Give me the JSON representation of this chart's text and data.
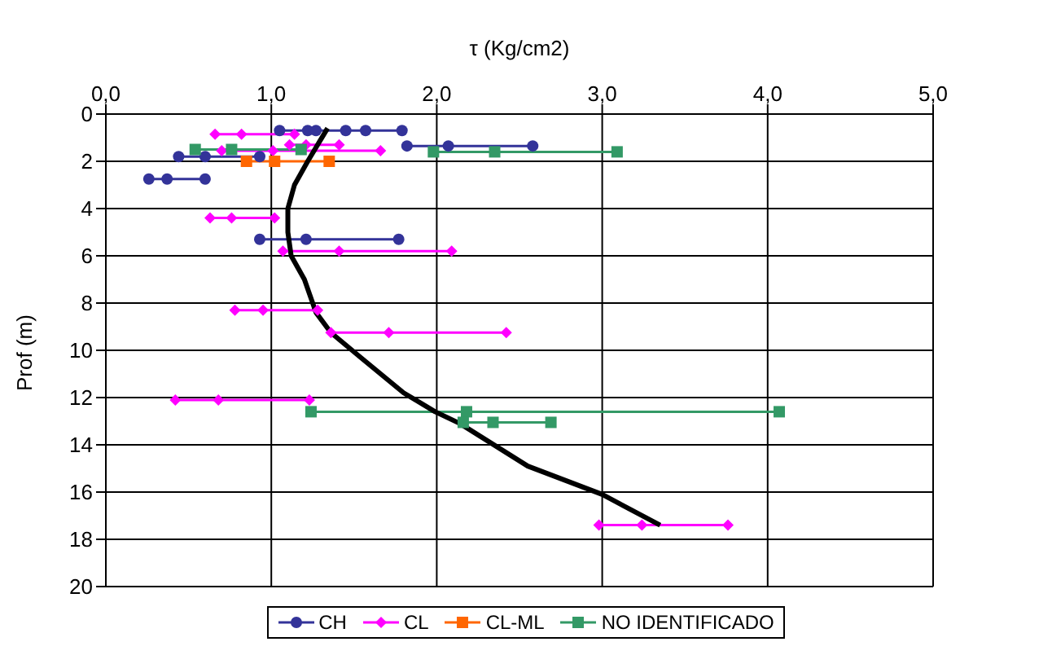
{
  "chart_data": {
    "type": "line",
    "xlabel": "τ (Kg/cm2)",
    "ylabel": "Prof (m)",
    "xlim": [
      0,
      5
    ],
    "xticks": [
      {
        "value": 0,
        "label": "0,0"
      },
      {
        "value": 1,
        "label": "1,0"
      },
      {
        "value": 2,
        "label": "2,0"
      },
      {
        "value": 3,
        "label": "3,0"
      },
      {
        "value": 4,
        "label": "4,0"
      },
      {
        "value": 5,
        "label": "5,0"
      }
    ],
    "ylim": [
      20,
      0
    ],
    "yticks": [
      0,
      2,
      4,
      6,
      8,
      10,
      12,
      14,
      16,
      18,
      20
    ],
    "grid": true,
    "legend": "bottom",
    "series": [
      {
        "name": "CH",
        "color": "#333399",
        "marker": "circle",
        "x": [
          1.05,
          1.22,
          1.27,
          1.45,
          1.57,
          1.79,
          null,
          1.82,
          2.07,
          2.58,
          null,
          0.44,
          0.6,
          0.93,
          null,
          0.26,
          0.37,
          0.6,
          null,
          0.93,
          1.21,
          1.77
        ],
        "values": [
          0.7,
          0.7,
          0.7,
          0.7,
          0.7,
          0.7,
          null,
          1.35,
          1.35,
          1.35,
          null,
          1.8,
          1.8,
          1.8,
          null,
          2.75,
          2.75,
          2.75,
          null,
          5.3,
          5.3,
          5.3
        ]
      },
      {
        "name": "CL",
        "color": "#ff00ff",
        "marker": "diamond",
        "x": [
          0.66,
          0.82,
          1.14,
          null,
          1.11,
          1.21,
          1.41,
          null,
          0.7,
          1.01,
          1.66,
          null,
          0.63,
          0.76,
          1.02,
          null,
          1.07,
          1.41,
          2.09,
          null,
          0.78,
          0.95,
          1.28,
          null,
          1.36,
          1.71,
          2.42,
          null,
          0.42,
          0.68,
          1.23,
          null,
          2.98,
          3.24,
          3.76
        ],
        "values": [
          0.85,
          0.85,
          0.85,
          null,
          1.3,
          1.3,
          1.3,
          null,
          1.55,
          1.55,
          1.55,
          null,
          4.4,
          4.4,
          4.4,
          null,
          5.8,
          5.8,
          5.8,
          null,
          8.3,
          8.3,
          8.3,
          null,
          9.25,
          9.25,
          9.25,
          null,
          12.1,
          12.1,
          12.1,
          null,
          17.4,
          17.4,
          17.4
        ]
      },
      {
        "name": "CL-ML",
        "color": "#ff6600",
        "marker": "square",
        "x": [
          0.85,
          1.02,
          1.35
        ],
        "values": [
          2,
          2,
          2
        ]
      },
      {
        "name": "NO IDENTIFICADO",
        "color": "#339966",
        "marker": "square",
        "x": [
          0.54,
          0.76,
          1.18,
          null,
          1.98,
          2.35,
          3.09,
          null,
          1.24,
          2.18,
          4.07,
          null,
          2.16,
          2.34,
          2.69
        ],
        "values": [
          1.5,
          1.5,
          1.5,
          null,
          1.6,
          1.6,
          1.6,
          null,
          12.6,
          12.6,
          12.6,
          null,
          13.05,
          13.05,
          13.05
        ]
      },
      {
        "color": "#000000",
        "marker": "none",
        "x": [
          1.34,
          1.22,
          1.14,
          1.1,
          1.1,
          1.12,
          1.2,
          1.27,
          1.36,
          1.54,
          1.8,
          1.99,
          2.14,
          2.55,
          3.0,
          3.35
        ],
        "values": [
          0.6,
          2,
          3,
          4,
          5,
          6,
          7,
          8.4,
          9.25,
          10.3,
          11.8,
          12.6,
          13.1,
          14.9,
          16.1,
          17.4
        ]
      }
    ]
  }
}
